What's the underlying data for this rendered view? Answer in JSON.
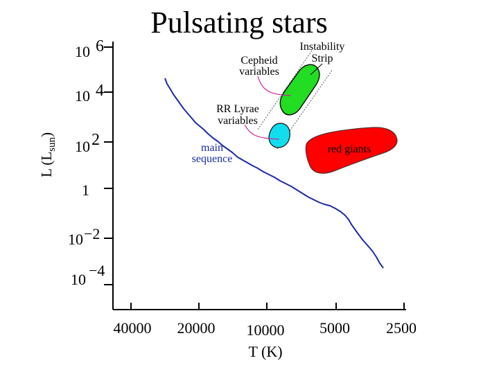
{
  "title": "Pulsating stars",
  "y_axis": {
    "label_main": "L (L",
    "label_sub": "sun",
    "label_close": ")",
    "ticks": [
      {
        "base": "10",
        "exp": "6"
      },
      {
        "base": "10",
        "exp": "4"
      },
      {
        "base": "10",
        "exp": "2"
      },
      {
        "base": "1",
        "exp": ""
      },
      {
        "base": "10",
        "exp": "−2"
      },
      {
        "base": "10",
        "exp": "−4"
      }
    ]
  },
  "x_axis": {
    "label": "T (K)",
    "ticks": [
      "40000",
      "20000",
      "10000",
      "5000",
      "2500"
    ]
  },
  "labels": {
    "instability_strip": [
      "Instability",
      "Strip"
    ],
    "cepheid": [
      "Cepheid",
      "variables"
    ],
    "rr_lyrae": [
      "RR Lyrae",
      "variables"
    ],
    "main_sequence": [
      "main",
      "sequence"
    ],
    "red_giants": "red giants"
  },
  "colors": {
    "axis": "#000000",
    "main_sequence_line": "#1a2aa8",
    "main_sequence_text": "#1a2aa8",
    "cepheid_region": "#22dd22",
    "rr_lyrae_region": "#11ddee",
    "red_giants_region": "#ff0000",
    "pointer_lines": "#cc2299"
  }
}
